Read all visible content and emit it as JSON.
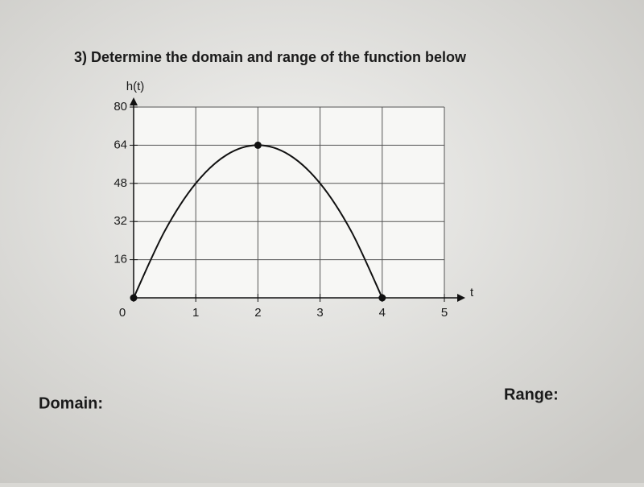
{
  "question": "3) Determine the domain and range of the function below",
  "domain_label": "Domain:",
  "range_label": "Range:",
  "chart_data": {
    "type": "line",
    "ylabel": "h(t)",
    "xlabel": "t",
    "x": [
      0,
      0.5,
      1,
      1.5,
      2,
      2.5,
      3,
      3.5,
      4
    ],
    "series": [
      {
        "color": "#111111",
        "style": "line",
        "x": [
          0,
          0.5,
          1,
          1.5,
          2,
          2.5,
          3,
          3.5,
          4
        ],
        "values": [
          0,
          28,
          48,
          60,
          64,
          60,
          48,
          28,
          0
        ]
      },
      {
        "color": "#111111",
        "style": "markers",
        "x": [
          0,
          2,
          4
        ],
        "values": [
          0,
          64,
          0
        ]
      }
    ],
    "xlim": [
      0,
      5
    ],
    "ylim": [
      0,
      80
    ],
    "xticks": [
      0,
      1,
      2,
      3,
      4,
      5
    ],
    "yticks": [
      16,
      32,
      48,
      64,
      80
    ],
    "grid": true
  }
}
